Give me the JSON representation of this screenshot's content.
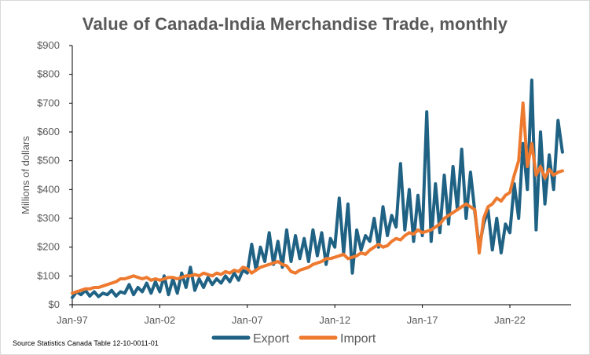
{
  "chart_data": {
    "type": "line",
    "title": "Value of Canada-India Merchandise Trade, monthly",
    "ylabel": "Millions of dollars",
    "xlabel": "",
    "ylim": [
      0,
      900
    ],
    "yticks": [
      0,
      100,
      200,
      300,
      400,
      500,
      600,
      700,
      800,
      900
    ],
    "ytick_labels": [
      "$0",
      "$100",
      "$200",
      "$300",
      "$400",
      "$500",
      "$600",
      "$700",
      "$800",
      "$900"
    ],
    "xlim": [
      1997.0,
      2025.5
    ],
    "xticks": [
      1997,
      2002,
      2007,
      2012,
      2017,
      2022
    ],
    "xtick_labels": [
      "Jan-97",
      "Jan-02",
      "Jan-07",
      "Jan-12",
      "Jan-17",
      "Jan-22"
    ],
    "legend_position": "bottom",
    "source": "Source Statistics Canada Table 12-10-0011-01",
    "colors": {
      "Export": "#1f6284",
      "Import": "#ee7a2f"
    },
    "series": [
      {
        "name": "Export",
        "color": "#1f6284",
        "points": [
          [
            1997.0,
            25
          ],
          [
            1997.25,
            45
          ],
          [
            1997.5,
            35
          ],
          [
            1997.75,
            50
          ],
          [
            1998.0,
            30
          ],
          [
            1998.25,
            45
          ],
          [
            1998.5,
            28
          ],
          [
            1998.75,
            40
          ],
          [
            1999.0,
            35
          ],
          [
            1999.25,
            50
          ],
          [
            1999.5,
            30
          ],
          [
            1999.75,
            45
          ],
          [
            2000.0,
            40
          ],
          [
            2000.25,
            70
          ],
          [
            2000.5,
            35
          ],
          [
            2000.75,
            60
          ],
          [
            2001.0,
            45
          ],
          [
            2001.25,
            75
          ],
          [
            2001.5,
            40
          ],
          [
            2001.75,
            80
          ],
          [
            2002.0,
            45
          ],
          [
            2002.25,
            100
          ],
          [
            2002.5,
            35
          ],
          [
            2002.75,
            90
          ],
          [
            2003.0,
            40
          ],
          [
            2003.25,
            110
          ],
          [
            2003.5,
            60
          ],
          [
            2003.75,
            130
          ],
          [
            2004.0,
            50
          ],
          [
            2004.25,
            90
          ],
          [
            2004.5,
            60
          ],
          [
            2004.75,
            95
          ],
          [
            2005.0,
            70
          ],
          [
            2005.25,
            90
          ],
          [
            2005.5,
            75
          ],
          [
            2005.75,
            100
          ],
          [
            2006.0,
            80
          ],
          [
            2006.25,
            110
          ],
          [
            2006.5,
            85
          ],
          [
            2006.75,
            120
          ],
          [
            2007.0,
            110
          ],
          [
            2007.25,
            210
          ],
          [
            2007.5,
            120
          ],
          [
            2007.75,
            200
          ],
          [
            2008.0,
            150
          ],
          [
            2008.25,
            250
          ],
          [
            2008.5,
            140
          ],
          [
            2008.75,
            220
          ],
          [
            2009.0,
            130
          ],
          [
            2009.25,
            260
          ],
          [
            2009.5,
            150
          ],
          [
            2009.75,
            240
          ],
          [
            2010.0,
            160
          ],
          [
            2010.25,
            230
          ],
          [
            2010.5,
            150
          ],
          [
            2010.75,
            260
          ],
          [
            2011.0,
            170
          ],
          [
            2011.25,
            250
          ],
          [
            2011.5,
            140
          ],
          [
            2011.75,
            230
          ],
          [
            2012.0,
            200
          ],
          [
            2012.25,
            370
          ],
          [
            2012.5,
            180
          ],
          [
            2012.75,
            350
          ],
          [
            2013.0,
            110
          ],
          [
            2013.25,
            260
          ],
          [
            2013.5,
            190
          ],
          [
            2013.75,
            240
          ],
          [
            2014.0,
            220
          ],
          [
            2014.25,
            300
          ],
          [
            2014.5,
            200
          ],
          [
            2014.75,
            340
          ],
          [
            2015.0,
            240
          ],
          [
            2015.25,
            310
          ],
          [
            2015.5,
            270
          ],
          [
            2015.75,
            490
          ],
          [
            2016.0,
            260
          ],
          [
            2016.25,
            400
          ],
          [
            2016.5,
            220
          ],
          [
            2016.75,
            380
          ],
          [
            2017.0,
            240
          ],
          [
            2017.25,
            670
          ],
          [
            2017.5,
            220
          ],
          [
            2017.75,
            420
          ],
          [
            2018.0,
            250
          ],
          [
            2018.25,
            450
          ],
          [
            2018.5,
            280
          ],
          [
            2018.75,
            480
          ],
          [
            2019.0,
            330
          ],
          [
            2019.25,
            540
          ],
          [
            2019.5,
            300
          ],
          [
            2019.75,
            460
          ],
          [
            2020.0,
            320
          ],
          [
            2020.25,
            200
          ],
          [
            2020.5,
            280
          ],
          [
            2020.75,
            330
          ],
          [
            2021.0,
            190
          ],
          [
            2021.25,
            300
          ],
          [
            2021.5,
            180
          ],
          [
            2021.75,
            280
          ],
          [
            2022.0,
            250
          ],
          [
            2022.25,
            420
          ],
          [
            2022.5,
            300
          ],
          [
            2022.75,
            560
          ],
          [
            2023.0,
            400
          ],
          [
            2023.25,
            780
          ],
          [
            2023.5,
            260
          ],
          [
            2023.75,
            600
          ],
          [
            2024.0,
            350
          ],
          [
            2024.25,
            520
          ],
          [
            2024.5,
            400
          ],
          [
            2024.75,
            640
          ],
          [
            2025.0,
            530
          ]
        ]
      },
      {
        "name": "Import",
        "color": "#ee7a2f",
        "points": [
          [
            1997.0,
            40
          ],
          [
            1997.25,
            45
          ],
          [
            1997.5,
            50
          ],
          [
            1997.75,
            55
          ],
          [
            1998.0,
            55
          ],
          [
            1998.25,
            60
          ],
          [
            1998.5,
            60
          ],
          [
            1998.75,
            65
          ],
          [
            1999.0,
            70
          ],
          [
            1999.25,
            75
          ],
          [
            1999.5,
            80
          ],
          [
            1999.75,
            90
          ],
          [
            2000.0,
            90
          ],
          [
            2000.25,
            95
          ],
          [
            2000.5,
            100
          ],
          [
            2000.75,
            95
          ],
          [
            2001.0,
            90
          ],
          [
            2001.25,
            95
          ],
          [
            2001.5,
            85
          ],
          [
            2001.75,
            90
          ],
          [
            2002.0,
            85
          ],
          [
            2002.25,
            90
          ],
          [
            2002.5,
            95
          ],
          [
            2002.75,
            95
          ],
          [
            2003.0,
            90
          ],
          [
            2003.25,
            95
          ],
          [
            2003.5,
            100
          ],
          [
            2003.75,
            100
          ],
          [
            2004.0,
            105
          ],
          [
            2004.25,
            100
          ],
          [
            2004.5,
            110
          ],
          [
            2004.75,
            105
          ],
          [
            2005.0,
            100
          ],
          [
            2005.25,
            110
          ],
          [
            2005.5,
            105
          ],
          [
            2005.75,
            115
          ],
          [
            2006.0,
            110
          ],
          [
            2006.25,
            120
          ],
          [
            2006.5,
            115
          ],
          [
            2006.75,
            130
          ],
          [
            2007.0,
            125
          ],
          [
            2007.25,
            110
          ],
          [
            2007.5,
            120
          ],
          [
            2007.75,
            130
          ],
          [
            2008.0,
            135
          ],
          [
            2008.25,
            140
          ],
          [
            2008.5,
            145
          ],
          [
            2008.75,
            150
          ],
          [
            2009.0,
            140
          ],
          [
            2009.25,
            135
          ],
          [
            2009.5,
            115
          ],
          [
            2009.75,
            110
          ],
          [
            2010.0,
            120
          ],
          [
            2010.25,
            125
          ],
          [
            2010.5,
            130
          ],
          [
            2010.75,
            140
          ],
          [
            2011.0,
            145
          ],
          [
            2011.25,
            150
          ],
          [
            2011.5,
            160
          ],
          [
            2011.75,
            160
          ],
          [
            2012.0,
            165
          ],
          [
            2012.25,
            170
          ],
          [
            2012.5,
            175
          ],
          [
            2012.75,
            160
          ],
          [
            2013.0,
            165
          ],
          [
            2013.25,
            170
          ],
          [
            2013.5,
            180
          ],
          [
            2013.75,
            175
          ],
          [
            2014.0,
            190
          ],
          [
            2014.25,
            200
          ],
          [
            2014.5,
            210
          ],
          [
            2014.75,
            200
          ],
          [
            2015.0,
            205
          ],
          [
            2015.25,
            220
          ],
          [
            2015.5,
            230
          ],
          [
            2015.75,
            225
          ],
          [
            2016.0,
            240
          ],
          [
            2016.25,
            250
          ],
          [
            2016.5,
            245
          ],
          [
            2016.75,
            260
          ],
          [
            2017.0,
            250
          ],
          [
            2017.25,
            255
          ],
          [
            2017.5,
            260
          ],
          [
            2017.75,
            270
          ],
          [
            2018.0,
            280
          ],
          [
            2018.25,
            300
          ],
          [
            2018.5,
            310
          ],
          [
            2018.75,
            320
          ],
          [
            2019.0,
            330
          ],
          [
            2019.25,
            340
          ],
          [
            2019.5,
            350
          ],
          [
            2019.75,
            340
          ],
          [
            2020.0,
            330
          ],
          [
            2020.25,
            180
          ],
          [
            2020.5,
            300
          ],
          [
            2020.75,
            340
          ],
          [
            2021.0,
            350
          ],
          [
            2021.25,
            370
          ],
          [
            2021.5,
            360
          ],
          [
            2021.75,
            380
          ],
          [
            2022.0,
            390
          ],
          [
            2022.25,
            450
          ],
          [
            2022.5,
            500
          ],
          [
            2022.75,
            700
          ],
          [
            2023.0,
            480
          ],
          [
            2023.25,
            560
          ],
          [
            2023.5,
            450
          ],
          [
            2023.75,
            480
          ],
          [
            2024.0,
            440
          ],
          [
            2024.25,
            470
          ],
          [
            2024.5,
            450
          ],
          [
            2024.75,
            460
          ],
          [
            2025.0,
            465
          ]
        ]
      }
    ]
  }
}
